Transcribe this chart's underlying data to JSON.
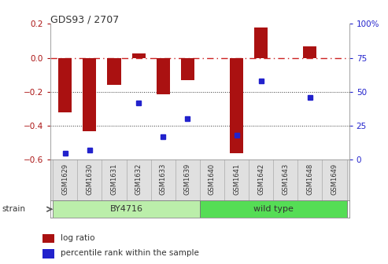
{
  "title": "GDS93 / 2707",
  "samples": [
    "GSM1629",
    "GSM1630",
    "GSM1631",
    "GSM1632",
    "GSM1633",
    "GSM1639",
    "GSM1640",
    "GSM1641",
    "GSM1642",
    "GSM1643",
    "GSM1648",
    "GSM1649"
  ],
  "log_ratio": [
    -0.32,
    -0.43,
    -0.16,
    0.025,
    -0.215,
    -0.13,
    0.0,
    -0.56,
    0.18,
    0.0,
    0.065,
    0.0
  ],
  "percentile": [
    5,
    7,
    null,
    42,
    17,
    30,
    null,
    18,
    58,
    null,
    46,
    null
  ],
  "bar_color": "#aa1111",
  "dot_color": "#2222cc",
  "dashed_line_color": "#cc2222",
  "ylim_left": [
    -0.6,
    0.2
  ],
  "ylim_right": [
    0,
    100
  ],
  "yticks_left": [
    0.2,
    0.0,
    -0.2,
    -0.4,
    -0.6
  ],
  "yticks_right": [
    100,
    75,
    50,
    25,
    0
  ],
  "strain_groups": [
    {
      "label": "BY4716",
      "start": 0,
      "end": 6,
      "color": "#bbeeaa"
    },
    {
      "label": "wild type",
      "start": 6,
      "end": 12,
      "color": "#55dd55"
    }
  ],
  "strain_label": "strain",
  "legend_items": [
    {
      "color": "#aa1111",
      "label": "log ratio"
    },
    {
      "color": "#2222cc",
      "label": "percentile rank within the sample"
    }
  ],
  "bg_color": "#ffffff",
  "plot_bg": "#ffffff",
  "bar_width": 0.55
}
